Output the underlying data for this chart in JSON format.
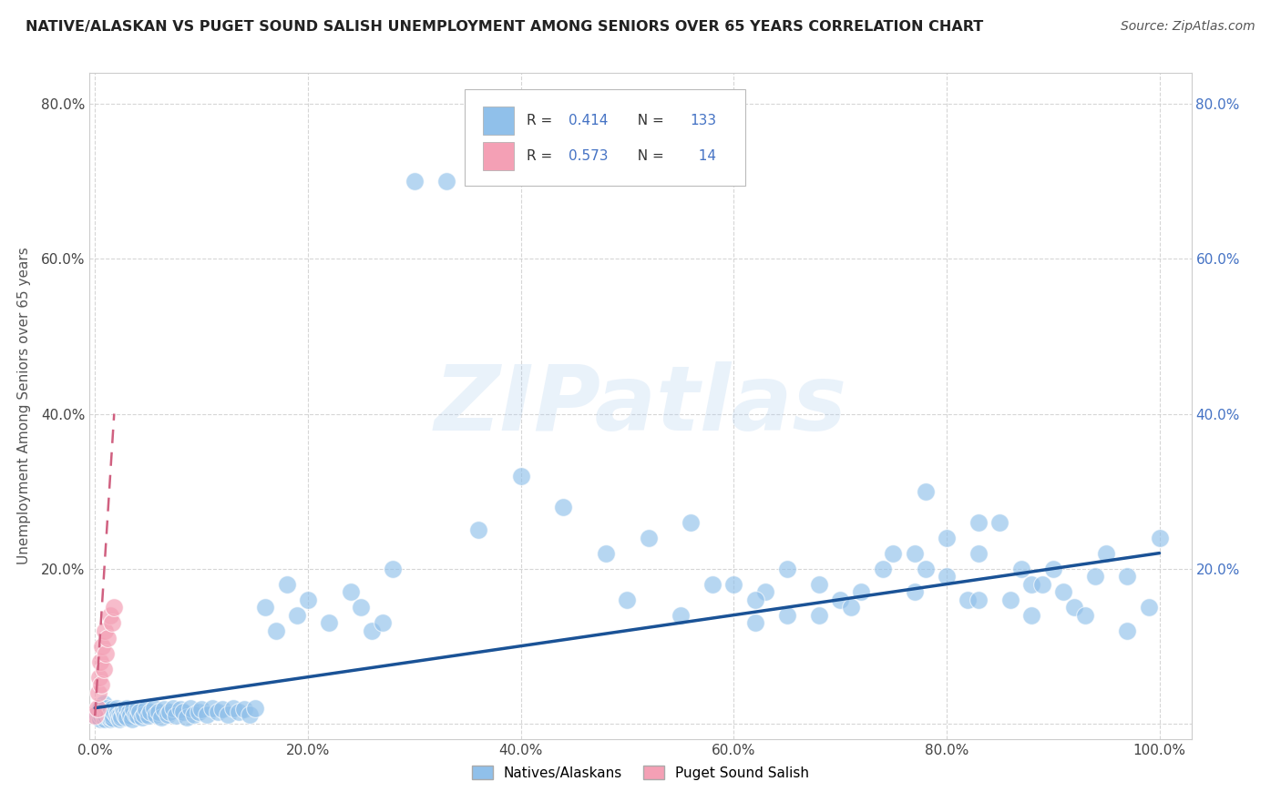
{
  "title": "NATIVE/ALASKAN VS PUGET SOUND SALISH UNEMPLOYMENT AMONG SENIORS OVER 65 YEARS CORRELATION CHART",
  "source": "Source: ZipAtlas.com",
  "ylabel": "Unemployment Among Seniors over 65 years",
  "R_blue": 0.414,
  "N_blue": 133,
  "R_pink": 0.573,
  "N_pink": 14,
  "blue_color": "#90C0EA",
  "pink_color": "#F4A0B5",
  "blue_line_color": "#1A5296",
  "pink_line_color": "#D06080",
  "legend_blue_label": "Natives/Alaskans",
  "legend_pink_label": "Puget Sound Salish",
  "background_color": "#FFFFFF",
  "watermark": "ZIPatlas",
  "blue_x": [
    0.0,
    0.002,
    0.003,
    0.004,
    0.005,
    0.005,
    0.006,
    0.007,
    0.008,
    0.008,
    0.009,
    0.01,
    0.01,
    0.012,
    0.013,
    0.014,
    0.015,
    0.015,
    0.016,
    0.017,
    0.018,
    0.02,
    0.02,
    0.021,
    0.022,
    0.023,
    0.024,
    0.025,
    0.026,
    0.027,
    0.028,
    0.03,
    0.03,
    0.032,
    0.033,
    0.035,
    0.036,
    0.038,
    0.04,
    0.04,
    0.042,
    0.044,
    0.046,
    0.048,
    0.05,
    0.052,
    0.055,
    0.057,
    0.06,
    0.062,
    0.065,
    0.068,
    0.07,
    0.073,
    0.076,
    0.08,
    0.083,
    0.086,
    0.09,
    0.093,
    0.097,
    0.1,
    0.105,
    0.11,
    0.115,
    0.12,
    0.125,
    0.13,
    0.135,
    0.14,
    0.145,
    0.15,
    0.16,
    0.17,
    0.18,
    0.19,
    0.2,
    0.22,
    0.24,
    0.26,
    0.28,
    0.3,
    0.33,
    0.36,
    0.4,
    0.44,
    0.48,
    0.52,
    0.56,
    0.6,
    0.65,
    0.7,
    0.75,
    0.8,
    0.85,
    0.9,
    0.95,
    1.0,
    0.25,
    0.27,
    0.5,
    0.55,
    0.58,
    0.62,
    0.63,
    0.68,
    0.72,
    0.77,
    0.82,
    0.87,
    0.92,
    0.97,
    0.78,
    0.83,
    0.88,
    0.93,
    0.78,
    0.83,
    0.88,
    0.91,
    0.94,
    0.97,
    0.99,
    0.62,
    0.65,
    0.68,
    0.71,
    0.74,
    0.77,
    0.8,
    0.83,
    0.86,
    0.89
  ],
  "blue_y": [
    0.01,
    0.01,
    0.015,
    0.008,
    0.005,
    0.02,
    0.01,
    0.015,
    0.01,
    0.025,
    0.005,
    0.01,
    0.02,
    0.015,
    0.01,
    0.005,
    0.008,
    0.018,
    0.012,
    0.007,
    0.015,
    0.01,
    0.02,
    0.015,
    0.01,
    0.005,
    0.012,
    0.008,
    0.018,
    0.015,
    0.01,
    0.02,
    0.008,
    0.015,
    0.01,
    0.005,
    0.018,
    0.012,
    0.01,
    0.02,
    0.015,
    0.008,
    0.012,
    0.018,
    0.01,
    0.015,
    0.02,
    0.012,
    0.015,
    0.008,
    0.018,
    0.012,
    0.015,
    0.02,
    0.01,
    0.018,
    0.015,
    0.008,
    0.02,
    0.012,
    0.015,
    0.018,
    0.012,
    0.02,
    0.015,
    0.018,
    0.012,
    0.02,
    0.015,
    0.018,
    0.012,
    0.02,
    0.15,
    0.12,
    0.18,
    0.14,
    0.16,
    0.13,
    0.17,
    0.12,
    0.2,
    0.7,
    0.7,
    0.25,
    0.32,
    0.28,
    0.22,
    0.24,
    0.26,
    0.18,
    0.2,
    0.16,
    0.22,
    0.24,
    0.26,
    0.2,
    0.22,
    0.24,
    0.15,
    0.13,
    0.16,
    0.14,
    0.18,
    0.13,
    0.17,
    0.14,
    0.17,
    0.22,
    0.16,
    0.2,
    0.15,
    0.19,
    0.3,
    0.26,
    0.18,
    0.14,
    0.2,
    0.16,
    0.14,
    0.17,
    0.19,
    0.12,
    0.15,
    0.16,
    0.14,
    0.18,
    0.15,
    0.2,
    0.17,
    0.19,
    0.22,
    0.16,
    0.18
  ],
  "pink_x": [
    0.0,
    0.002,
    0.003,
    0.004,
    0.005,
    0.006,
    0.007,
    0.008,
    0.009,
    0.01,
    0.012,
    0.014,
    0.016,
    0.018
  ],
  "pink_y": [
    0.01,
    0.02,
    0.04,
    0.06,
    0.08,
    0.05,
    0.1,
    0.07,
    0.12,
    0.09,
    0.11,
    0.14,
    0.13,
    0.15
  ]
}
